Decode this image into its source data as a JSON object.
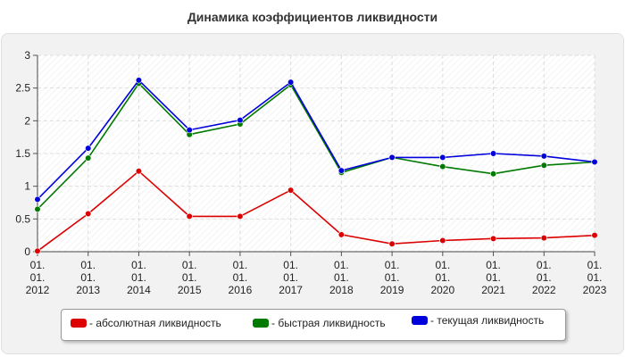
{
  "chart_data": {
    "type": "line",
    "title": "Динамика коэффициентов ликвидности",
    "xlabel": "",
    "ylabel": "",
    "categories": [
      [
        "01.",
        "01.",
        "2012"
      ],
      [
        "01.",
        "01.",
        "2013"
      ],
      [
        "01.",
        "01.",
        "2014"
      ],
      [
        "01.",
        "01.",
        "2015"
      ],
      [
        "01.",
        "01.",
        "2016"
      ],
      [
        "01.",
        "01.",
        "2017"
      ],
      [
        "01.",
        "01.",
        "2018"
      ],
      [
        "01.",
        "01.",
        "2019"
      ],
      [
        "01.",
        "01.",
        "2020"
      ],
      [
        "01.",
        "01.",
        "2021"
      ],
      [
        "01.",
        "01.",
        "2022"
      ],
      [
        "01.",
        "01.",
        "2023"
      ]
    ],
    "ylim": [
      0,
      3
    ],
    "yticks": [
      "0",
      "0.5",
      "1",
      "1.5",
      "2",
      "2.5",
      "3"
    ],
    "grid": true,
    "legend_position": "bottom",
    "series": [
      {
        "name": "- абсолютная ликвидность",
        "color": "#dd0000",
        "values": [
          0.01,
          0.58,
          1.23,
          0.54,
          0.54,
          0.94,
          0.26,
          0.12,
          0.17,
          0.2,
          0.21,
          0.25
        ]
      },
      {
        "name": "- быстрая ликвидность",
        "color": "#007a00",
        "values": [
          0.65,
          1.43,
          2.57,
          1.79,
          1.95,
          2.55,
          1.21,
          1.44,
          1.3,
          1.19,
          1.32,
          1.37
        ]
      },
      {
        "name": "- текущая ликвидность",
        "color": "#0000dd",
        "values": [
          0.8,
          1.58,
          2.62,
          1.86,
          2.01,
          2.59,
          1.24,
          1.44,
          1.44,
          1.5,
          1.46,
          1.37
        ]
      }
    ]
  }
}
